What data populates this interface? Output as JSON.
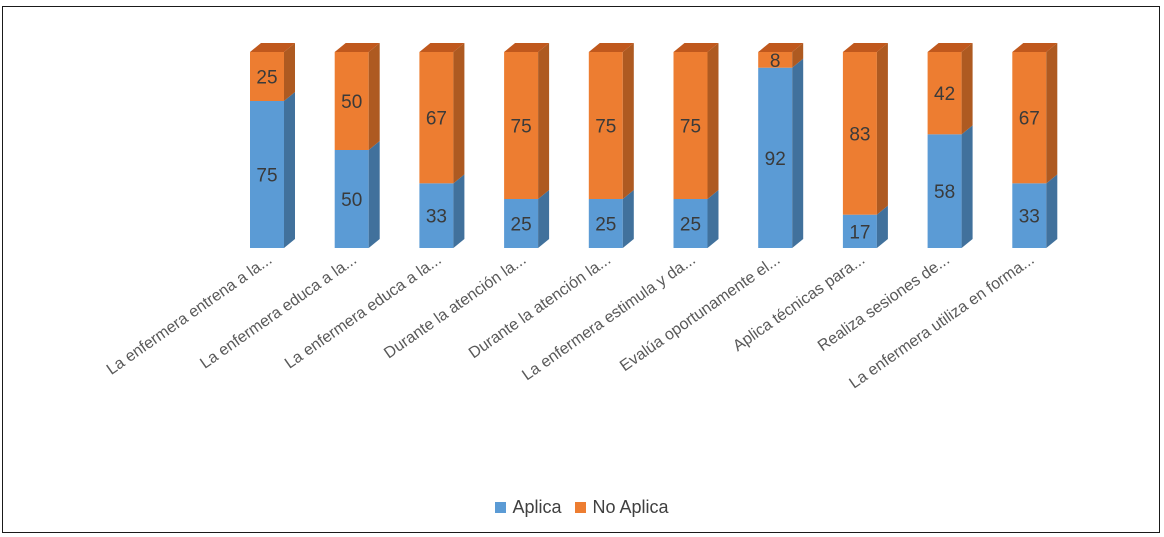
{
  "chart_data": {
    "type": "bar",
    "stacked": true,
    "style": "3d-column-100-percent",
    "categories": [
      "La enfermera entrena a la...",
      "La enfermera educa a la...",
      "La enfermera educa a la...",
      "Durante la atención la...",
      "Durante la atención la...",
      "La enfermera estimula y da...",
      "Evalúa oportunamente el...",
      "Aplica técnicas para...",
      "Realiza sesiones de...",
      "La enfermera utiliza en forma..."
    ],
    "series": [
      {
        "name": "Aplica",
        "color": "#5b9bd5",
        "side_color": "#41719c",
        "top_color": "#7fb0de",
        "values": [
          75,
          50,
          33,
          25,
          25,
          25,
          92,
          17,
          58,
          33
        ]
      },
      {
        "name": "No Aplica",
        "color": "#ed7d31",
        "side_color": "#ae5a21",
        "top_color": "#c0581d",
        "values": [
          25,
          50,
          67,
          75,
          75,
          75,
          8,
          83,
          42,
          67
        ]
      }
    ],
    "ylim": [
      0,
      100
    ],
    "legend_position": "bottom",
    "grid": false
  }
}
